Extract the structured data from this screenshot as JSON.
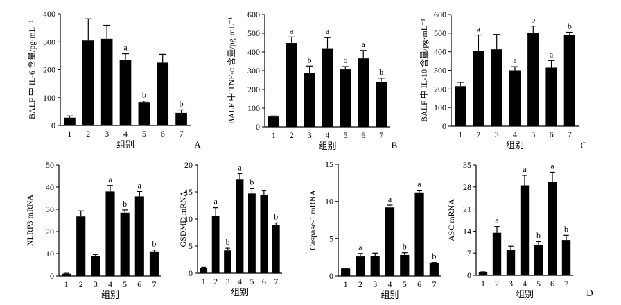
{
  "chart_data": [
    {
      "type": "bar",
      "panel_label": "A",
      "ylabel": "BALF 中 IL-6 含量/pg·mL⁻¹",
      "xlabel": "组别",
      "categories": [
        "1",
        "2",
        "3",
        "4",
        "5",
        "6",
        "7"
      ],
      "values": [
        28,
        305,
        311,
        234,
        84,
        225,
        45
      ],
      "errors": [
        6,
        77,
        48,
        23,
        4,
        30,
        11
      ],
      "sig": [
        "",
        "",
        "",
        "a",
        "b",
        "",
        "b"
      ],
      "ylim": [
        0,
        400
      ],
      "yticks": [
        "0",
        "100",
        "200",
        "300",
        "400"
      ]
    },
    {
      "type": "bar",
      "panel_label": "B",
      "ylabel": "BALF 中 TNF-α 含量/pg·mL⁻¹",
      "xlabel": "组别",
      "categories": [
        "1",
        "2",
        "3",
        "4",
        "5",
        "6",
        "7"
      ],
      "values": [
        55,
        448,
        288,
        420,
        307,
        366,
        240
      ],
      "errors": [
        3,
        32,
        37,
        57,
        15,
        42,
        20
      ],
      "sig": [
        "",
        "a",
        "b",
        "a",
        "b",
        "a",
        "b"
      ],
      "ylim": [
        0,
        600
      ],
      "yticks": [
        "0",
        "100",
        "200",
        "300",
        "400",
        "500",
        "600"
      ]
    },
    {
      "type": "bar",
      "panel_label": "C",
      "ylabel": "BALF 中 IL-10 含量/pg·mL⁻¹",
      "xlabel": "组别",
      "categories": [
        "1",
        "2",
        "3",
        "4",
        "5",
        "6",
        "7"
      ],
      "values": [
        215,
        405,
        413,
        300,
        500,
        315,
        490
      ],
      "errors": [
        20,
        85,
        80,
        20,
        38,
        38,
        15
      ],
      "sig": [
        "",
        "a",
        "",
        "a",
        "b",
        "a",
        "b"
      ],
      "ylim": [
        0,
        600
      ],
      "yticks": [
        "0",
        "100",
        "200",
        "300",
        "400",
        "500",
        "600"
      ]
    },
    {
      "type": "bar",
      "panel_label": "",
      "ylabel": "NLRP3 mRNA",
      "xlabel": "组别",
      "categories": [
        "1",
        "2",
        "3",
        "4",
        "5",
        "6",
        "7"
      ],
      "values": [
        1,
        26.8,
        8.8,
        38,
        28.5,
        35.8,
        11
      ],
      "errors": [
        0.2,
        2.5,
        0.8,
        2.7,
        1.2,
        2.2,
        0.7
      ],
      "sig": [
        "",
        "",
        "",
        "a",
        "b",
        "a",
        "b"
      ],
      "ylim": [
        0,
        50
      ],
      "yticks": [
        "0",
        "10",
        "20",
        "30",
        "40",
        "50"
      ]
    },
    {
      "type": "bar",
      "panel_label": "",
      "ylabel": "GSDMD mRNA",
      "xlabel": "组别",
      "categories": [
        "1",
        "2",
        "3",
        "4",
        "5",
        "6",
        "7"
      ],
      "values": [
        1,
        10.6,
        4.2,
        17.4,
        14.7,
        14.5,
        8.9
      ],
      "errors": [
        0.1,
        1.5,
        0.4,
        1.0,
        1.0,
        0.8,
        0.4
      ],
      "sig": [
        "",
        "a",
        "b",
        "a",
        "b",
        "",
        "b"
      ],
      "ylim": [
        0,
        20
      ],
      "yticks": [
        "0",
        "5",
        "10",
        "15",
        "20"
      ]
    },
    {
      "type": "bar",
      "panel_label": "",
      "ylabel": "Caspase-1 mRNA",
      "xlabel": "组别",
      "categories": [
        "1",
        "2",
        "3",
        "4",
        "5",
        "6",
        "7"
      ],
      "values": [
        1,
        2.6,
        2.7,
        9.2,
        2.8,
        11.2,
        1.7
      ],
      "errors": [
        0.05,
        0.4,
        0.35,
        0.3,
        0.3,
        0.3,
        0.1
      ],
      "sig": [
        "",
        "a",
        "",
        "a",
        "b",
        "a",
        "b"
      ],
      "ylim": [
        0,
        15
      ],
      "yticks": [
        "0",
        "5",
        "10",
        "15"
      ]
    },
    {
      "type": "bar",
      "panel_label": "D",
      "ylabel": "ASC mRNA",
      "xlabel": "组别",
      "categories": [
        "1",
        "2",
        "3",
        "4",
        "5",
        "6",
        "7"
      ],
      "values": [
        1,
        13.5,
        8,
        28.5,
        9.5,
        29.5,
        11.2
      ],
      "errors": [
        0.1,
        2,
        1.2,
        3.2,
        1.2,
        3.2,
        1.5
      ],
      "sig": [
        "",
        "a",
        "",
        "a",
        "b",
        "a",
        "b"
      ],
      "ylim": [
        0,
        35
      ],
      "yticks": [
        "0",
        "7",
        "14",
        "21",
        "28",
        "35"
      ]
    }
  ]
}
